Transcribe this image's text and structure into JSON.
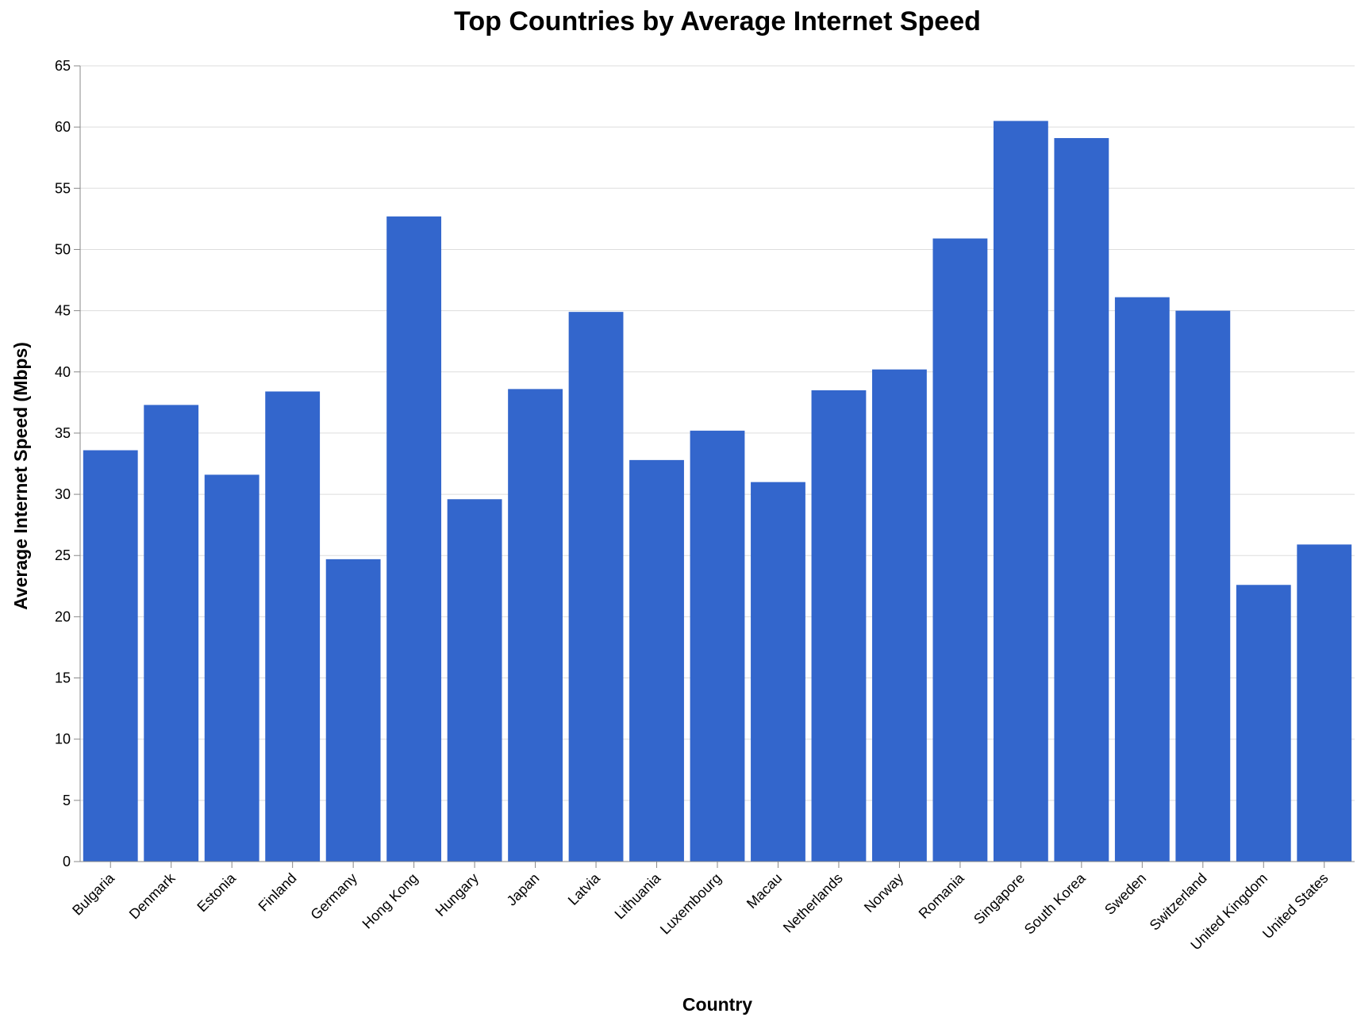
{
  "chart_data": {
    "type": "bar",
    "title": "Top Countries by Average Internet Speed",
    "xlabel": "Country",
    "ylabel": "Average Internet Speed (Mbps)",
    "ylim": [
      0,
      65
    ],
    "yticks": [
      0,
      5,
      10,
      15,
      20,
      25,
      30,
      35,
      40,
      45,
      50,
      55,
      60,
      65
    ],
    "grid": true,
    "legend": "none",
    "color": "#3366cc",
    "categories": [
      "Bulgaria",
      "Denmark",
      "Estonia",
      "Finland",
      "Germany",
      "Hong Kong",
      "Hungary",
      "Japan",
      "Latvia",
      "Lithuania",
      "Luxembourg",
      "Macau",
      "Netherlands",
      "Norway",
      "Romania",
      "Singapore",
      "South Korea",
      "Sweden",
      "Switzerland",
      "United Kingdom",
      "United States"
    ],
    "values": [
      33.6,
      37.3,
      31.6,
      38.4,
      24.7,
      52.7,
      29.6,
      38.6,
      44.9,
      32.8,
      35.2,
      31.0,
      38.5,
      40.2,
      50.9,
      60.5,
      59.1,
      46.1,
      45.0,
      22.6,
      25.9
    ]
  }
}
